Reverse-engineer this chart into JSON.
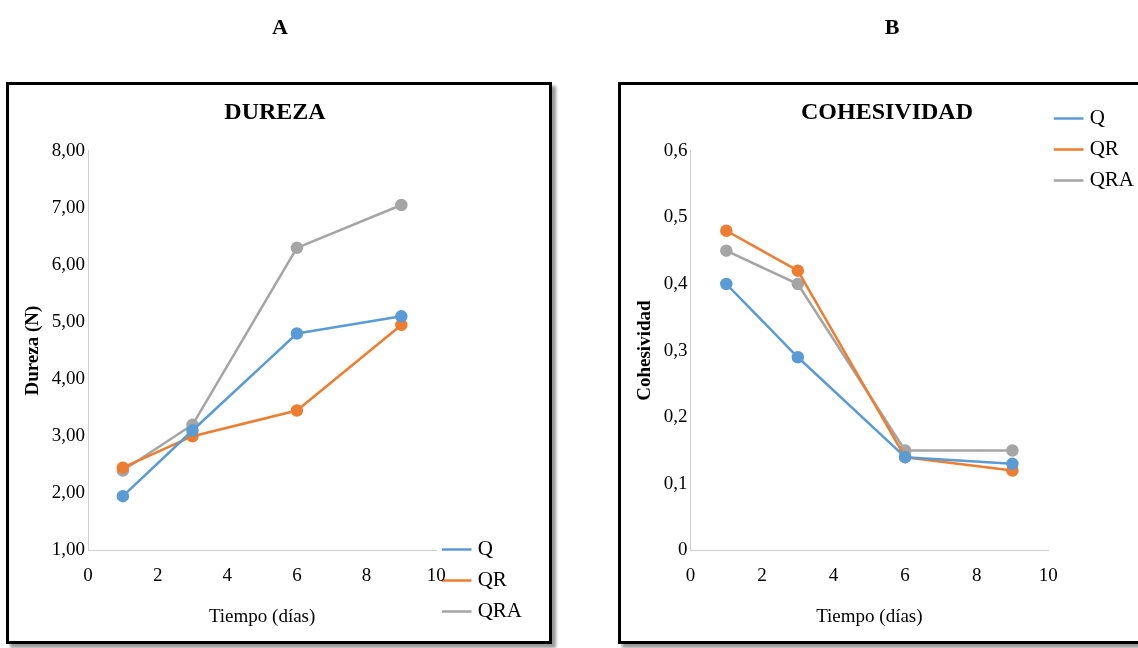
{
  "chart_data": [
    {
      "type": "line",
      "title": "DUREZA",
      "xlabel": "Tiempo (días)",
      "ylabel": "Dureza (N)",
      "annotations": [
        "A"
      ],
      "x": [
        1,
        3,
        6,
        9
      ],
      "series": [
        {
          "name": "Q",
          "color": "#5b9bd5",
          "values": [
            1.95,
            3.1,
            4.8,
            5.1
          ]
        },
        {
          "name": "QR",
          "color": "#ed7d31",
          "values": [
            2.45,
            3.0,
            3.45,
            4.95
          ]
        },
        {
          "name": "QRA",
          "color": "#a5a5a5",
          "values": [
            2.4,
            3.2,
            6.3,
            7.05
          ]
        }
      ],
      "xlim": [
        0,
        10
      ],
      "xticks": [
        0,
        2,
        4,
        6,
        8,
        10
      ],
      "ylim": [
        1,
        8
      ],
      "yticks": [
        {
          "value": 1,
          "label": "1,00"
        },
        {
          "value": 2,
          "label": "2,00"
        },
        {
          "value": 3,
          "label": "3,00"
        },
        {
          "value": 4,
          "label": "4,00"
        },
        {
          "value": 5,
          "label": "5,00"
        },
        {
          "value": 6,
          "label": "6,00"
        },
        {
          "value": 7,
          "label": "7,00"
        },
        {
          "value": 8,
          "label": "8,00"
        }
      ],
      "grid": false,
      "legend": "bottom right",
      "marker": "circle",
      "line_style": "solid"
    },
    {
      "type": "line",
      "title": "COHESIVIDAD",
      "xlabel": "Tiempo (días)",
      "ylabel": "Cohesividad",
      "annotations": [
        "B"
      ],
      "x": [
        1,
        3,
        6,
        9
      ],
      "series": [
        {
          "name": "Q",
          "color": "#5b9bd5",
          "values": [
            0.4,
            0.29,
            0.14,
            0.13
          ]
        },
        {
          "name": "QR",
          "color": "#ed7d31",
          "values": [
            0.48,
            0.42,
            0.14,
            0.12
          ]
        },
        {
          "name": "QRA",
          "color": "#a5a5a5",
          "values": [
            0.45,
            0.4,
            0.15,
            0.15
          ]
        }
      ],
      "xlim": [
        0,
        10
      ],
      "xticks": [
        0,
        2,
        4,
        6,
        8,
        10
      ],
      "ylim": [
        0,
        0.6
      ],
      "yticks": [
        0,
        {
          "value": 0.1,
          "label": "0,1"
        },
        {
          "value": 0.2,
          "label": "0,2"
        },
        {
          "value": 0.3,
          "label": "0,3"
        },
        {
          "value": 0.4,
          "label": "0,4"
        },
        {
          "value": 0.5,
          "label": "0,5"
        },
        {
          "value": 0.6,
          "label": "0,6"
        }
      ],
      "grid": false,
      "legend": "top right",
      "marker": "circle",
      "line_style": "solid"
    }
  ]
}
